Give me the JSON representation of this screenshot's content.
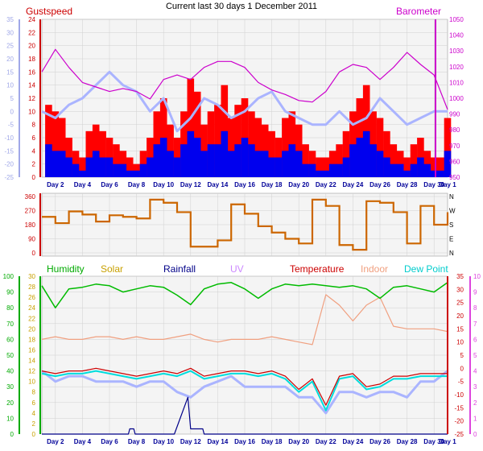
{
  "title": "Current last 30 days 1 December 2011",
  "colors": {
    "gust": "#ff0000",
    "wind": "#0000ee",
    "wind_avg": "#0a0a8a",
    "barometer": "#cc00cc",
    "temp_light": "#aab4ff",
    "direction": "#cc6600",
    "humidity": "#00bb00",
    "solar": "#c8a000",
    "rainfall": "#000088",
    "uv": "#cc88ff",
    "temperature": "#cc0000",
    "indoor": "#f0a080",
    "dewpoint": "#00dddd",
    "axis_left_top": "#a0a8e8",
    "axis_right_top": "#cc00cc",
    "axis_green": "#00aa00",
    "axis_red": "#cc0000",
    "axis_pink": "#dd44dd",
    "grid": "#d0d0d0",
    "plot_bg": "#f4f4f4",
    "day_label": "#000099"
  },
  "x_labels": [
    "Day 2",
    "Day 4",
    "Day 6",
    "Day 8",
    "Day 10",
    "Day 12",
    "Day 14",
    "Day 16",
    "Day 18",
    "Day 20",
    "Day 22",
    "Day 24",
    "Day 26",
    "Day 28",
    "Day 30",
    "Day 1"
  ],
  "chart_data": [
    {
      "type": "line",
      "panel": "wind-barometer",
      "legend": [
        "Gustspeed",
        "Barometer"
      ],
      "y_left_outer": [
        "35",
        "30",
        "25",
        "20",
        "15",
        "10",
        "5",
        "0",
        "-5",
        "-10",
        "-15",
        "-20",
        "-25"
      ],
      "y_left_inner": [
        "24",
        "22",
        "20",
        "18",
        "16",
        "14",
        "12",
        "10",
        "8",
        "6",
        "4",
        "2",
        "0"
      ],
      "y_right": [
        "1050",
        "1040",
        "1030",
        "1020",
        "1010",
        "1000",
        "990",
        "980",
        "970",
        "960",
        "950"
      ],
      "ylim_left": [
        0,
        24
      ],
      "ylim_right": [
        945,
        1050
      ],
      "xlim": [
        1,
        31
      ],
      "series": [
        {
          "name": "Gustspeed",
          "x": [
            1.5,
            2,
            2.5,
            3,
            3.5,
            4,
            4.5,
            5,
            5.5,
            6,
            6.5,
            7,
            7.5,
            8,
            8.5,
            9,
            9.5,
            10,
            10.5,
            11,
            11.5,
            12,
            12.5,
            13,
            13.5,
            14,
            14.5,
            15,
            15.5,
            16,
            16.5,
            17,
            17.5,
            18,
            18.5,
            19,
            19.5,
            20,
            20.5,
            21,
            21.5,
            22,
            22.5,
            23,
            23.5,
            24,
            24.5,
            25,
            25.5,
            26,
            26.5,
            27,
            27.5,
            28,
            28.5,
            29,
            29.5,
            30,
            30.5,
            31
          ],
          "values": [
            11,
            10,
            9,
            6,
            4,
            3,
            7,
            8,
            7,
            6,
            5,
            4,
            3,
            2,
            4,
            6,
            10,
            12,
            8,
            6,
            10,
            15,
            13,
            8,
            10,
            11,
            14,
            9,
            11,
            12,
            10,
            9,
            8,
            7,
            6,
            9,
            10,
            8,
            5,
            4,
            3,
            3,
            4,
            5,
            7,
            10,
            12,
            14,
            10,
            9,
            7,
            5,
            4,
            3,
            5,
            6,
            4,
            3,
            3,
            9
          ]
        },
        {
          "name": "Windspeed",
          "x": [
            1.5,
            2,
            2.5,
            3,
            3.5,
            4,
            4.5,
            5,
            5.5,
            6,
            6.5,
            7,
            7.5,
            8,
            8.5,
            9,
            9.5,
            10,
            10.5,
            11,
            11.5,
            12,
            12.5,
            13,
            13.5,
            14,
            14.5,
            15,
            15.5,
            16,
            16.5,
            17,
            17.5,
            18,
            18.5,
            19,
            19.5,
            20,
            20.5,
            21,
            21.5,
            22,
            22.5,
            23,
            23.5,
            24,
            24.5,
            25,
            25.5,
            26,
            26.5,
            27,
            27.5,
            28,
            28.5,
            29,
            29.5,
            30,
            30.5,
            31
          ],
          "values": [
            5,
            4,
            4,
            3,
            2,
            1,
            3,
            4,
            3,
            3,
            2,
            2,
            1,
            1,
            2,
            3,
            5,
            6,
            4,
            3,
            5,
            7,
            6,
            4,
            5,
            5,
            7,
            4,
            5,
            6,
            5,
            4,
            4,
            3,
            3,
            4,
            5,
            4,
            2,
            2,
            1,
            1,
            2,
            2,
            3,
            5,
            6,
            7,
            5,
            4,
            3,
            2,
            2,
            1,
            2,
            3,
            2,
            1,
            1,
            4
          ]
        },
        {
          "name": "Barometer",
          "x": [
            1,
            2,
            3,
            4,
            5,
            6,
            7,
            8,
            9,
            10,
            11,
            12,
            13,
            14,
            15,
            16,
            17,
            18,
            19,
            20,
            21,
            22,
            23,
            24,
            25,
            26,
            27,
            28,
            29,
            30,
            31
          ],
          "values": [
            1015,
            1030,
            1018,
            1008,
            1005,
            1002,
            1004,
            1002,
            997,
            1010,
            1013,
            1010,
            1018,
            1022,
            1022,
            1018,
            1008,
            1003,
            1000,
            996,
            995,
            1002,
            1015,
            1020,
            1018,
            1010,
            1018,
            1028,
            1020,
            1013,
            990
          ]
        },
        {
          "name": "Temperature (light)",
          "x": [
            1,
            2,
            3,
            4,
            5,
            6,
            7,
            8,
            9,
            10,
            11,
            12,
            13,
            14,
            15,
            16,
            17,
            18,
            19,
            20,
            21,
            22,
            23,
            24,
            25,
            26,
            27,
            28,
            29,
            30,
            31
          ],
          "values": [
            10,
            9,
            11,
            12,
            14,
            16,
            14,
            13,
            10,
            12,
            7,
            9,
            12,
            11,
            9,
            10,
            12,
            13,
            10,
            9,
            8,
            8,
            10,
            8,
            9,
            12,
            10,
            8,
            9,
            10,
            10
          ]
        }
      ]
    },
    {
      "type": "line",
      "panel": "wind-direction",
      "y_left": [
        "360",
        "270",
        "180",
        "90",
        "0"
      ],
      "y_right": [
        "N",
        "W",
        "S",
        "E",
        "N"
      ],
      "ylim": [
        0,
        360
      ],
      "series": [
        {
          "name": "Wind direction",
          "x": [
            1,
            2,
            3,
            4,
            5,
            6,
            7,
            8,
            9,
            10,
            11,
            12,
            13,
            14,
            15,
            16,
            17,
            18,
            19,
            20,
            21,
            22,
            23,
            24,
            25,
            26,
            27,
            28,
            29,
            30,
            31
          ],
          "values": [
            230,
            190,
            265,
            245,
            200,
            240,
            230,
            220,
            340,
            320,
            260,
            40,
            40,
            80,
            310,
            250,
            170,
            130,
            90,
            60,
            340,
            300,
            50,
            20,
            330,
            320,
            260,
            60,
            300,
            180,
            260
          ]
        }
      ]
    },
    {
      "type": "line",
      "panel": "temperature-humidity",
      "legend": [
        "Humidity",
        "Solar",
        "Rainfall",
        "UV",
        "Temperature",
        "Indoor",
        "Dew Point"
      ],
      "y_left_green": [
        "100",
        "90",
        "80",
        "70",
        "60",
        "50",
        "40",
        "30",
        "20",
        "10",
        "0"
      ],
      "y_left_solar": [
        "30",
        "28",
        "26",
        "24",
        "22",
        "20",
        "18",
        "16",
        "14",
        "12",
        "10",
        "8",
        "6",
        "4",
        "2",
        "0"
      ],
      "y_right_red": [
        "35",
        "30",
        "25",
        "20",
        "15",
        "10",
        "5",
        "0",
        "-5",
        "-10",
        "-15",
        "-20",
        "-25"
      ],
      "y_right_pink": [
        "10",
        "9",
        "8",
        "7",
        "6",
        "5",
        "4",
        "3",
        "2",
        "1",
        "0"
      ],
      "series": [
        {
          "name": "Humidity",
          "x": [
            1,
            2,
            3,
            4,
            5,
            6,
            7,
            8,
            9,
            10,
            11,
            12,
            13,
            14,
            15,
            16,
            17,
            18,
            19,
            20,
            21,
            22,
            23,
            24,
            25,
            26,
            27,
            28,
            29,
            30,
            31
          ],
          "values": [
            94,
            80,
            92,
            93,
            95,
            94,
            90,
            92,
            94,
            93,
            88,
            82,
            92,
            95,
            96,
            92,
            86,
            92,
            95,
            94,
            95,
            94,
            93,
            94,
            92,
            86,
            93,
            94,
            92,
            90,
            96
          ]
        },
        {
          "name": "Indoor",
          "x": [
            1,
            2,
            3,
            4,
            5,
            6,
            7,
            8,
            9,
            10,
            11,
            12,
            13,
            14,
            15,
            16,
            17,
            18,
            19,
            20,
            21,
            22,
            23,
            24,
            25,
            26,
            27,
            28,
            29,
            30,
            31
          ],
          "values": [
            11,
            12,
            11,
            11,
            12,
            12,
            11,
            12,
            11,
            11,
            12,
            13,
            11,
            10,
            11,
            11,
            11,
            12,
            11,
            10,
            9,
            28,
            24,
            18,
            24,
            27,
            16,
            15,
            15,
            15,
            14
          ]
        },
        {
          "name": "Temperature",
          "x": [
            1,
            2,
            3,
            4,
            5,
            6,
            7,
            8,
            9,
            10,
            11,
            12,
            13,
            14,
            15,
            16,
            17,
            18,
            19,
            20,
            21,
            22,
            23,
            24,
            25,
            26,
            27,
            28,
            29,
            30,
            31
          ],
          "values": [
            -1,
            -2,
            -1,
            -1,
            0,
            -1,
            -2,
            -3,
            -2,
            -1,
            -2,
            0,
            -3,
            -2,
            -1,
            -1,
            -2,
            -1,
            -3,
            -8,
            -4,
            -14,
            -3,
            -2,
            -7,
            -6,
            -3,
            -3,
            -2,
            -2,
            -2
          ]
        },
        {
          "name": "Dew Point",
          "x": [
            1,
            2,
            3,
            4,
            5,
            6,
            7,
            8,
            9,
            10,
            11,
            12,
            13,
            14,
            15,
            16,
            17,
            18,
            19,
            20,
            21,
            22,
            23,
            24,
            25,
            26,
            27,
            28,
            29,
            30,
            31
          ],
          "values": [
            -2,
            -3,
            -2,
            -2,
            -1,
            -2,
            -3,
            -4,
            -3,
            -2,
            -3,
            -1,
            -4,
            -3,
            -2,
            -2,
            -3,
            -2,
            -4,
            -9,
            -5,
            -16,
            -4,
            -3,
            -8,
            -7,
            -4,
            -4,
            -3,
            -3,
            -3
          ]
        },
        {
          "name": "Solar",
          "x": [
            1,
            2,
            3,
            4,
            5,
            6,
            7,
            8,
            9,
            10,
            11,
            12,
            13,
            14,
            15,
            16,
            17,
            18,
            19,
            20,
            21,
            22,
            23,
            24,
            25,
            26,
            27,
            28,
            29,
            30,
            31
          ],
          "values": [
            12,
            10,
            11,
            11,
            10,
            10,
            10,
            9,
            10,
            10,
            8,
            7,
            9,
            10,
            11,
            9,
            9,
            9,
            9,
            7,
            7,
            4,
            8,
            8,
            7,
            8,
            8,
            7,
            10,
            10,
            12
          ]
        },
        {
          "name": "Rainfall",
          "x": [
            1,
            7.4,
            7.5,
            7.8,
            7.9,
            10.8,
            11.8,
            12.0,
            12.1,
            12.9,
            13.0,
            31
          ],
          "values": [
            0,
            0,
            1,
            1,
            0,
            0,
            7,
            1,
            1,
            1,
            0,
            0
          ]
        }
      ]
    }
  ]
}
